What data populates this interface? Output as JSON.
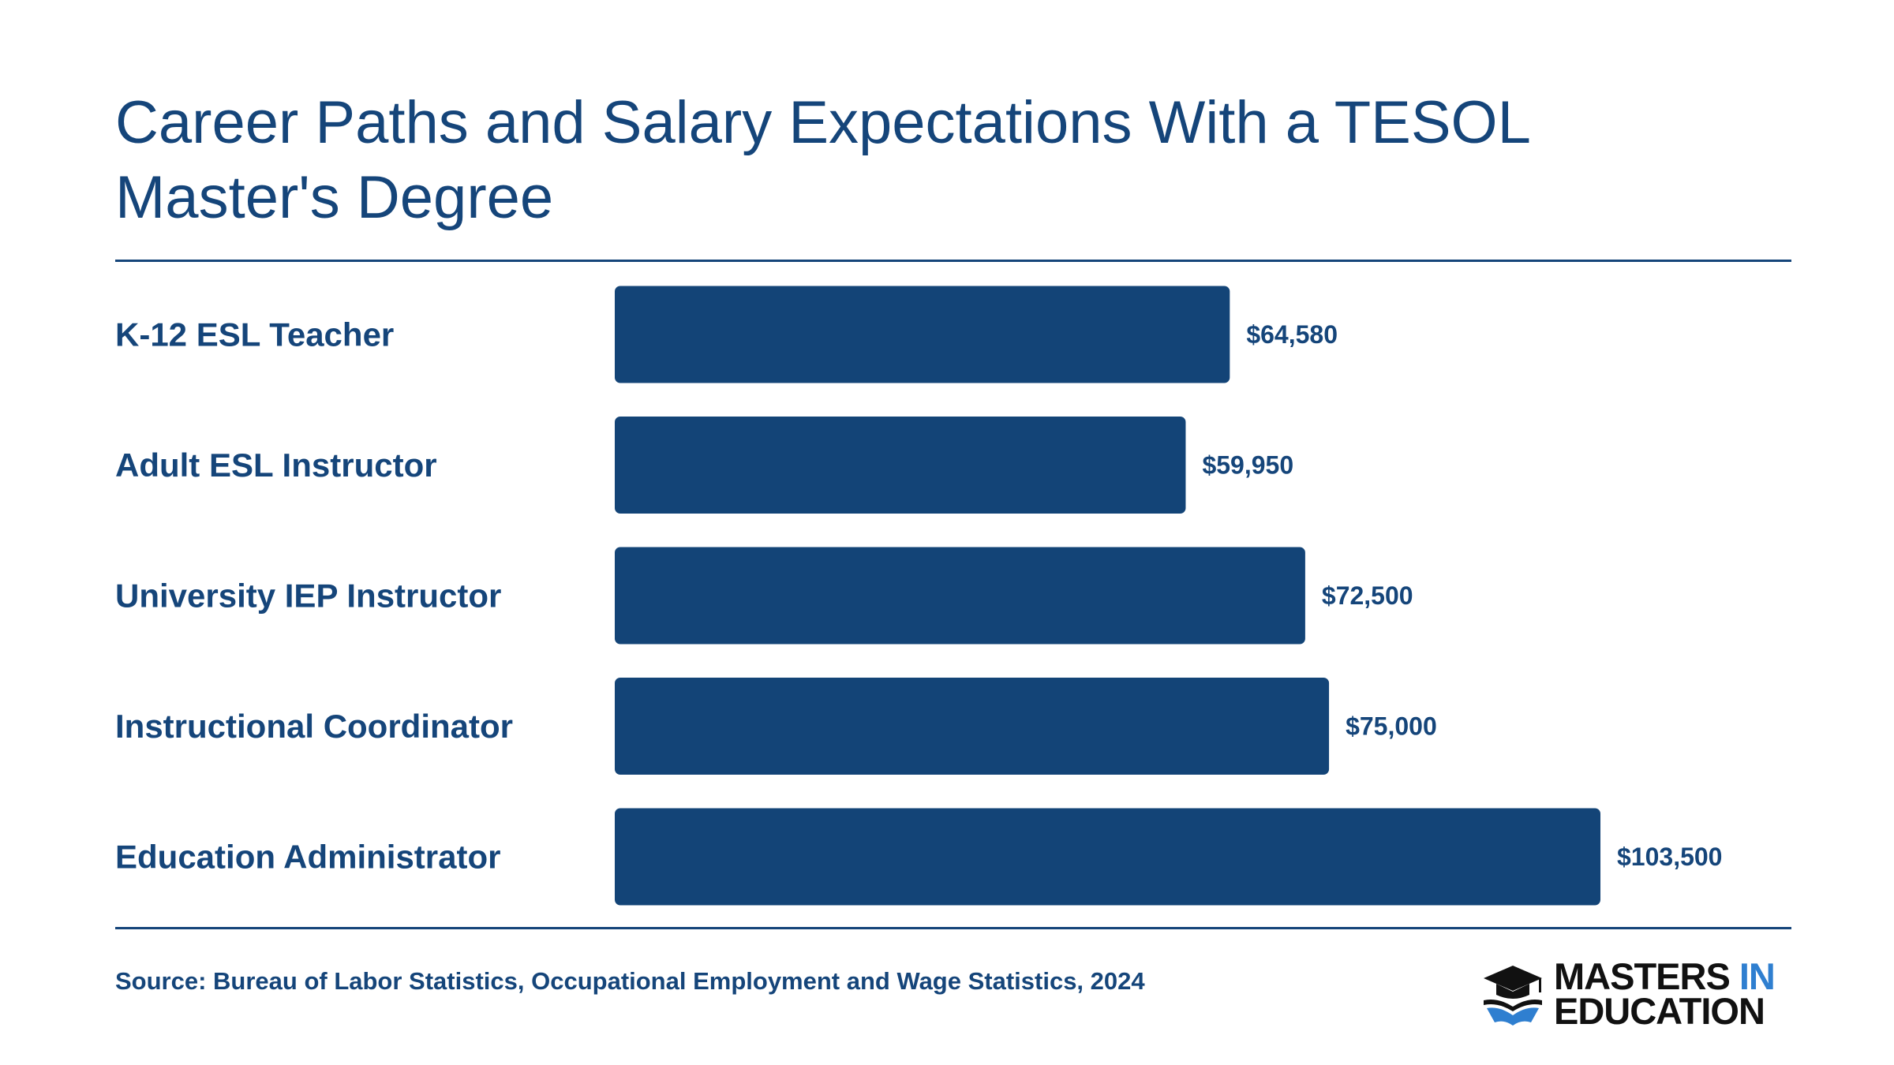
{
  "title": "Career Paths and Salary Expectations With a TESOL Master's Degree",
  "source": "Source: Bureau of Labor Statistics, Occupational Employment and Wage Statistics, 2024",
  "logo": {
    "line1": "MASTERS",
    "line1_accent": "IN",
    "line2": "EDUCATION",
    "icon": "graduation-cap-book-icon"
  },
  "colors": {
    "bar": "#134477",
    "text": "#15457a",
    "logo_accent": "#2f7fd0"
  },
  "chart_data": {
    "type": "bar",
    "orientation": "horizontal",
    "title": "Career Paths and Salary Expectations With a TESOL Master's Degree",
    "categories": [
      "K-12 ESL Teacher",
      "Adult ESL Instructor",
      "University IEP Instructor",
      "Instructional Coordinator",
      "Education Administrator"
    ],
    "values": [
      64580,
      59950,
      72500,
      75000,
      103500
    ],
    "value_labels": [
      "$64,580",
      "$59,950",
      "$72,500",
      "$75,000",
      "$103,500"
    ],
    "xlabel": "",
    "ylabel": "",
    "xlim": [
      0,
      103500
    ],
    "grid": false,
    "legend": "none"
  }
}
